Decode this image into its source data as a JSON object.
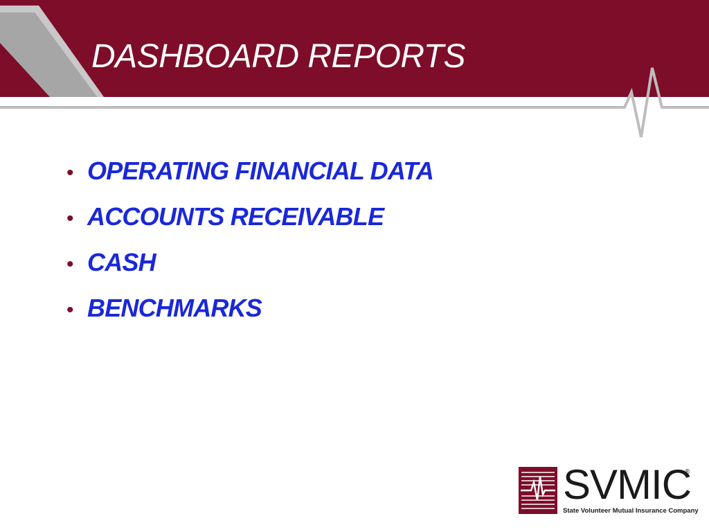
{
  "slide": {
    "title": "DASHBOARD REPORTS",
    "bullets": [
      "OPERATING FINANCIAL DATA",
      "ACCOUNTS RECEIVABLE",
      "CASH",
      "BENCHMARKS"
    ],
    "bullet_symbol": "•"
  },
  "logo": {
    "name": "SVMIC",
    "registered_mark": "®",
    "tagline": "State Volunteer Mutual Insurance Company",
    "icon": "heartbeat-pulse-icon"
  },
  "colors": {
    "banner": "#7e0d2a",
    "title_text": "#ffffff",
    "bullet_text": "#1a28d8",
    "bullet_marker": "#7e0d2a",
    "accent_gray": "#b3b3b3"
  }
}
